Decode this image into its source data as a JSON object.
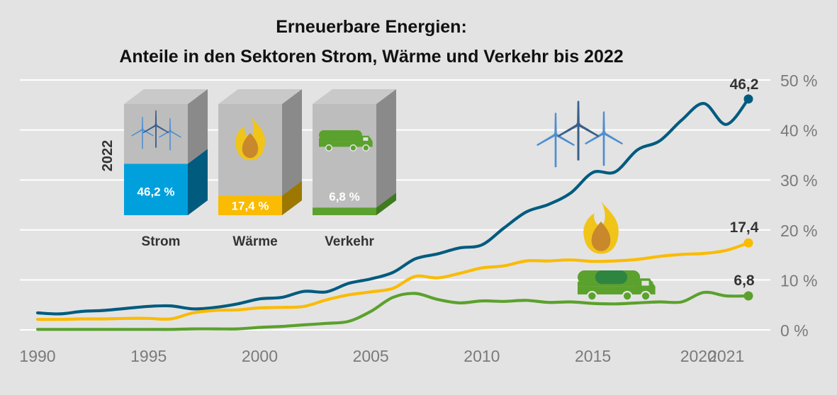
{
  "chart_data": {
    "type": "line",
    "title": "Erneuerbare Energien:",
    "subtitle": "Anteile in den Sektoren Strom, Wärme und Verkehr bis 2022",
    "ylim": [
      0,
      50
    ],
    "xlim": [
      1990,
      2022
    ],
    "ytick_labels": [
      "0 %",
      "10 %",
      "20 %",
      "30 %",
      "40 %",
      "50 %"
    ],
    "ytick_values": [
      0,
      10,
      20,
      30,
      40,
      50
    ],
    "xtick_labels": [
      "1990",
      "1995",
      "2000",
      "2005",
      "2010",
      "2015",
      "2020",
      "2021"
    ],
    "xtick_values": [
      1990,
      1995,
      2000,
      2005,
      2010,
      2015,
      2020,
      2021
    ],
    "grid": true,
    "x": [
      1990,
      1991,
      1992,
      1993,
      1994,
      1995,
      1996,
      1997,
      1998,
      1999,
      2000,
      2001,
      2002,
      2003,
      2004,
      2005,
      2006,
      2007,
      2008,
      2009,
      2010,
      2011,
      2012,
      2013,
      2014,
      2015,
      2016,
      2017,
      2018,
      2019,
      2020,
      2021,
      2022
    ],
    "series": [
      {
        "key": "strom",
        "color": "#005b7f",
        "values": [
          3.4,
          3.2,
          3.7,
          3.9,
          4.3,
          4.7,
          4.8,
          4.2,
          4.5,
          5.2,
          6.2,
          6.5,
          7.7,
          7.6,
          9.3,
          10.2,
          11.5,
          14.2,
          15.2,
          16.4,
          17.0,
          20.4,
          23.6,
          25.1,
          27.4,
          31.5,
          31.6,
          36.0,
          37.8,
          42.0,
          45.3,
          41.1,
          46.2
        ]
      },
      {
        "key": "waerme",
        "color": "#fabb00",
        "values": [
          2.1,
          2.1,
          2.2,
          2.2,
          2.3,
          2.3,
          2.2,
          3.4,
          3.9,
          4.0,
          4.4,
          4.5,
          4.7,
          6.0,
          7.0,
          7.6,
          8.3,
          10.7,
          10.4,
          11.3,
          12.4,
          12.8,
          13.8,
          13.8,
          14.0,
          13.7,
          13.8,
          14.1,
          14.7,
          15.1,
          15.3,
          15.9,
          17.4
        ]
      },
      {
        "key": "verkehr",
        "color": "#5ba12d",
        "values": [
          0.1,
          0.1,
          0.1,
          0.1,
          0.1,
          0.1,
          0.1,
          0.2,
          0.2,
          0.2,
          0.5,
          0.7,
          1.0,
          1.3,
          1.7,
          3.7,
          6.5,
          7.3,
          6.1,
          5.4,
          5.8,
          5.7,
          5.9,
          5.5,
          5.6,
          5.3,
          5.2,
          5.4,
          5.6,
          5.6,
          7.5,
          6.8,
          6.8
        ]
      }
    ],
    "end_labels": [
      "46,2",
      "17,4",
      "6,8"
    ]
  },
  "inset": {
    "year": "2022",
    "boxes": [
      {
        "label": "Strom",
        "value": "46,2 %",
        "share": 46.2,
        "color": "#00a0dd",
        "side": "#005b7f",
        "icon": "wind-turbines-icon"
      },
      {
        "label": "Wärme",
        "value": "17,4 %",
        "share": 17.4,
        "color": "#fabb00",
        "side": "#9c7800",
        "icon": "flame-icon"
      },
      {
        "label": "Verkehr",
        "value": "6,8 %",
        "share": 6.8,
        "color": "#5ba12d",
        "side": "#3e7a1e",
        "icon": "tanker-truck-icon"
      }
    ]
  }
}
